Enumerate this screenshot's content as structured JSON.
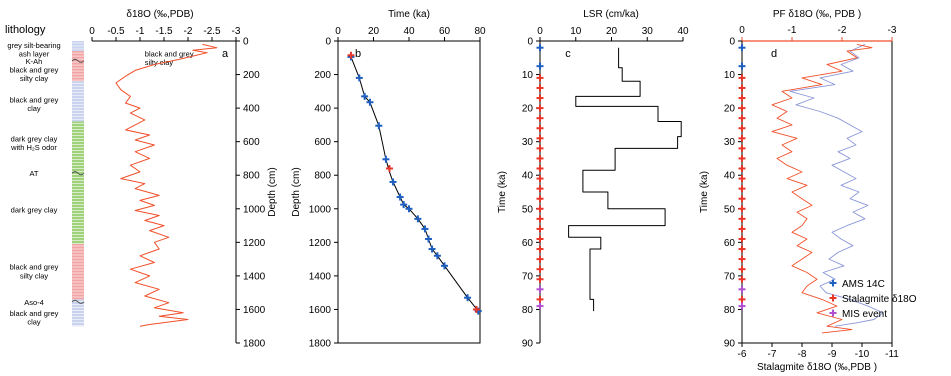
{
  "colors": {
    "orange": "#f0502a",
    "blue": "#1f5fbf",
    "lightblue": "#8b97d8",
    "red": "#e8372a",
    "magenta": "#b04fcf",
    "black": "#000000",
    "litho_blue": "#c9d3ee",
    "litho_red": "#f2a4a4",
    "litho_green": "#9fd27a"
  },
  "chart_data": [
    {
      "panel": "a",
      "type": "line",
      "title": "δ18O (‰,PDB)",
      "xlabel": "δ18O (‰,PDB)",
      "ylabel": "Depth (cm)",
      "xlim": [
        0,
        -3
      ],
      "ylim": [
        0,
        1800
      ],
      "xticks": [
        "0",
        "-0.5",
        "-1",
        "-1.5",
        "-2",
        "-2.5",
        "-3"
      ],
      "yticks": [
        "0",
        "200",
        "400",
        "600",
        "800",
        "1000",
        "1200",
        "1400",
        "1600",
        "1800"
      ],
      "lithology_title": "lithology",
      "lithology_units": [
        {
          "label": "grey silt-bearing ash layer",
          "top": 0,
          "bottom": 60,
          "fill": "litho_blue"
        },
        {
          "label": "black and grey silty clay",
          "top": 60,
          "bottom": 240,
          "fill": "litho_red"
        },
        {
          "label": "black and grey clay",
          "top": 240,
          "bottom": 480,
          "fill": "litho_blue"
        },
        {
          "label": "dark grey clay with H2S odor",
          "top": 480,
          "bottom": 1210,
          "fill": "litho_green"
        },
        {
          "label": "black and grey silty clay",
          "top": 1210,
          "bottom": 1540,
          "fill": "litho_red"
        },
        {
          "label": "black and grey clay",
          "top": 1540,
          "bottom": 1700,
          "fill": "litho_blue"
        }
      ],
      "lithology_labels": [
        {
          "text": "grey silt-bearing",
          "depth": 25
        },
        {
          "text": "ash layer",
          "depth": 75
        },
        {
          "text": "K-Ah",
          "depth": 118
        },
        {
          "text": "black and grey",
          "depth": 170
        },
        {
          "text": "silty clay",
          "depth": 220
        },
        {
          "text": "black and  grey",
          "depth": 350
        },
        {
          "text": "clay",
          "depth": 400
        },
        {
          "text": "dark grey clay",
          "depth": 580
        },
        {
          "text": "with H₂S odor",
          "depth": 632
        },
        {
          "text": "AT",
          "depth": 788
        },
        {
          "text": "dark grey clay",
          "depth": 1005
        },
        {
          "text": "black and grey",
          "depth": 1345
        },
        {
          "text": "silty clay",
          "depth": 1398
        },
        {
          "text": "Aso-4",
          "depth": 1555
        },
        {
          "text": "black and grey",
          "depth": 1620
        },
        {
          "text": "clay",
          "depth": 1673
        }
      ],
      "tephra_layers": [
        {
          "name": "K-Ah",
          "depth": 118
        },
        {
          "name": "AT",
          "depth": 788
        },
        {
          "name": "Aso-4",
          "depth": 1555
        }
      ],
      "annotations": [
        {
          "text": "black and grey",
          "x": -1.1,
          "depth": 75
        },
        {
          "text": "silty clay",
          "x": -1.1,
          "depth": 125
        }
      ],
      "series": [
        {
          "color": "orange",
          "points": [
            [
              -2.3,
              20
            ],
            [
              -2.6,
              40
            ],
            [
              -2.1,
              55
            ],
            [
              -2.4,
              70
            ],
            [
              -2.1,
              90
            ],
            [
              -1.8,
              110
            ],
            [
              -1.3,
              140
            ],
            [
              -0.9,
              175
            ],
            [
              -0.7,
              210
            ],
            [
              -0.5,
              250
            ],
            [
              -0.6,
              290
            ],
            [
              -0.8,
              330
            ],
            [
              -0.7,
              370
            ],
            [
              -1.0,
              400
            ],
            [
              -0.8,
              430
            ],
            [
              -1.1,
              470
            ],
            [
              -0.9,
              500
            ],
            [
              -0.7,
              530
            ],
            [
              -1.2,
              560
            ],
            [
              -0.9,
              590
            ],
            [
              -1.3,
              620
            ],
            [
              -0.9,
              660
            ],
            [
              -1.2,
              700
            ],
            [
              -0.8,
              740
            ],
            [
              -1.0,
              780
            ],
            [
              -0.6,
              820
            ],
            [
              -1.1,
              850
            ],
            [
              -0.9,
              880
            ],
            [
              -1.4,
              920
            ],
            [
              -1.0,
              950
            ],
            [
              -1.3,
              980
            ],
            [
              -0.9,
              1010
            ],
            [
              -1.4,
              1040
            ],
            [
              -1.1,
              1070
            ],
            [
              -1.5,
              1100
            ],
            [
              -1.2,
              1130
            ],
            [
              -1.6,
              1170
            ],
            [
              -1.3,
              1200
            ],
            [
              -1.4,
              1240
            ],
            [
              -1.0,
              1280
            ],
            [
              -1.3,
              1320
            ],
            [
              -0.8,
              1360
            ],
            [
              -1.2,
              1400
            ],
            [
              -0.9,
              1440
            ],
            [
              -1.4,
              1480
            ],
            [
              -1.1,
              1520
            ],
            [
              -1.6,
              1560
            ],
            [
              -1.3,
              1590
            ],
            [
              -1.9,
              1620
            ],
            [
              -1.4,
              1640
            ],
            [
              -2.0,
              1660
            ],
            [
              -1.2,
              1690
            ],
            [
              -1.0,
              1700
            ]
          ]
        }
      ]
    },
    {
      "panel": "b",
      "type": "line",
      "title": "Time (ka)",
      "xlabel": "Time (ka)",
      "ylabel": "Depth (cm)",
      "xlim": [
        0,
        80
      ],
      "ylim": [
        0,
        1800
      ],
      "xticks": [
        "0",
        "20",
        "40",
        "60",
        "80"
      ],
      "yticks": [
        "0",
        "200",
        "400",
        "600",
        "800",
        "1000",
        "1200",
        "1400",
        "1600",
        "1800"
      ],
      "age_model": [
        [
          7.3,
          95
        ],
        [
          12,
          220
        ],
        [
          15,
          330
        ],
        [
          18,
          365
        ],
        [
          23,
          505
        ],
        [
          27,
          705
        ],
        [
          29,
          780
        ],
        [
          31,
          840
        ],
        [
          35,
          930
        ],
        [
          37,
          975
        ],
        [
          40,
          1000
        ],
        [
          45,
          1060
        ],
        [
          49,
          1120
        ],
        [
          51,
          1180
        ],
        [
          53,
          1240
        ],
        [
          56,
          1280
        ],
        [
          60,
          1340
        ],
        [
          73,
          1530
        ],
        [
          79,
          1610
        ]
      ],
      "ams14c": [
        [
          7.3,
          95
        ],
        [
          12,
          220
        ],
        [
          15,
          330
        ],
        [
          18,
          365
        ],
        [
          23,
          505
        ],
        [
          27,
          705
        ],
        [
          31,
          840
        ],
        [
          35,
          930
        ],
        [
          37,
          975
        ],
        [
          40,
          1000
        ],
        [
          45,
          1060
        ],
        [
          49,
          1120
        ],
        [
          51,
          1180
        ],
        [
          53,
          1240
        ],
        [
          56,
          1280
        ],
        [
          60,
          1340
        ],
        [
          73,
          1530
        ],
        [
          79,
          1610
        ]
      ],
      "stalagmite": [
        [
          7.3,
          85
        ],
        [
          29,
          760
        ],
        [
          78,
          1600
        ]
      ]
    },
    {
      "panel": "c",
      "type": "line",
      "title": "LSR (cm/ka)",
      "xlabel": "LSR (cm/ka)",
      "ylabel": "Time (ka)",
      "xlim": [
        0,
        40
      ],
      "ylim": [
        0,
        90
      ],
      "xticks": [
        "0",
        "10",
        "20",
        "30",
        "40"
      ],
      "yticks": [
        "0",
        "10",
        "20",
        "30",
        "40",
        "50",
        "60",
        "70",
        "80",
        "90"
      ],
      "steps": [
        [
          22,
          2
        ],
        [
          22,
          8
        ],
        [
          23,
          8
        ],
        [
          23,
          12
        ],
        [
          28,
          12
        ],
        [
          28,
          16.5
        ],
        [
          10,
          16.5
        ],
        [
          10,
          19.5
        ],
        [
          33,
          19.5
        ],
        [
          33,
          24
        ],
        [
          39.5,
          24
        ],
        [
          39.5,
          28.5
        ],
        [
          38.5,
          28.5
        ],
        [
          38.5,
          32
        ],
        [
          21,
          32
        ],
        [
          21,
          38.5
        ],
        [
          12,
          38.5
        ],
        [
          12,
          45
        ],
        [
          19,
          45
        ],
        [
          19,
          50
        ],
        [
          35,
          50
        ],
        [
          35,
          55
        ],
        [
          8,
          55
        ],
        [
          8,
          58.5
        ],
        [
          17,
          58.5
        ],
        [
          17,
          62
        ],
        [
          14,
          62
        ],
        [
          14,
          77
        ],
        [
          15,
          77
        ],
        [
          15,
          80.5
        ]
      ],
      "ams14c": [
        2,
        7.5
      ],
      "stalagmite": [
        11,
        14,
        17,
        20,
        23,
        26,
        29,
        32,
        35,
        38,
        41,
        44,
        47,
        50,
        53,
        56,
        59,
        62,
        65,
        68,
        71,
        77
      ],
      "mis": [
        74,
        79
      ]
    },
    {
      "panel": "d",
      "type": "line",
      "title": "PF δ18O (‰, PDB )",
      "xlabel_bottom": "Stalagmite δ18O (‰,PDB )",
      "ylabel": "Time (ka)",
      "xlim_top": [
        0,
        -3
      ],
      "xlim_bottom": [
        -6,
        -11
      ],
      "ylim": [
        0,
        90
      ],
      "xticks_top": [
        "0",
        "-1",
        "-2",
        "-3"
      ],
      "xticks_bottom": [
        "-6",
        "-7",
        "-8",
        "-9",
        "-10",
        "-11"
      ],
      "yticks": [
        "0",
        "10",
        "20",
        "30",
        "40",
        "50",
        "60",
        "70",
        "80",
        "90"
      ],
      "legend": [
        "AMS 14C",
        "Stalagmite δ18O",
        "MIS event"
      ],
      "legend_position": "lower-right",
      "pf_series": [
        [
          -2.3,
          1
        ],
        [
          -2.6,
          2
        ],
        [
          -2.1,
          3
        ],
        [
          -2.3,
          5
        ],
        [
          -1.7,
          7
        ],
        [
          -2.0,
          9
        ],
        [
          -1.2,
          11
        ],
        [
          -1.6,
          13
        ],
        [
          -0.8,
          15
        ],
        [
          -1.0,
          17
        ],
        [
          -0.6,
          19
        ],
        [
          -0.9,
          21
        ],
        [
          -0.7,
          23
        ],
        [
          -1.0,
          25
        ],
        [
          -0.6,
          27
        ],
        [
          -1.1,
          29
        ],
        [
          -0.8,
          31
        ],
        [
          -1.0,
          33
        ],
        [
          -0.7,
          35
        ],
        [
          -0.9,
          37
        ],
        [
          -1.2,
          39
        ],
        [
          -0.9,
          41
        ],
        [
          -1.3,
          43
        ],
        [
          -1.0,
          45
        ],
        [
          -1.2,
          47
        ],
        [
          -1.4,
          49
        ],
        [
          -1.1,
          51
        ],
        [
          -1.3,
          53
        ],
        [
          -1.2,
          55
        ],
        [
          -1.0,
          57
        ],
        [
          -1.3,
          59
        ],
        [
          -1.1,
          61
        ],
        [
          -1.4,
          63
        ],
        [
          -1.2,
          65
        ],
        [
          -1.0,
          67
        ],
        [
          -1.3,
          69
        ],
        [
          -1.5,
          71
        ],
        [
          -1.3,
          73
        ],
        [
          -1.2,
          75
        ],
        [
          -1.6,
          77
        ],
        [
          -1.9,
          79
        ],
        [
          -1.5,
          81
        ],
        [
          -2.0,
          83
        ],
        [
          -1.7,
          85
        ],
        [
          -2.2,
          86
        ],
        [
          -1.6,
          87
        ]
      ],
      "stal_series": [
        [
          -10.1,
          1
        ],
        [
          -9.6,
          3
        ],
        [
          -9.9,
          5
        ],
        [
          -9.3,
          7
        ],
        [
          -9.7,
          9
        ],
        [
          -8.6,
          11
        ],
        [
          -9.1,
          13
        ],
        [
          -7.6,
          15
        ],
        [
          -8.4,
          17
        ],
        [
          -7.8,
          19
        ],
        [
          -8.6,
          21
        ],
        [
          -9.2,
          23
        ],
        [
          -9.6,
          25
        ],
        [
          -10.0,
          27
        ],
        [
          -9.5,
          29
        ],
        [
          -9.8,
          31
        ],
        [
          -9.2,
          33
        ],
        [
          -9.6,
          35
        ],
        [
          -9.0,
          37
        ],
        [
          -9.4,
          39
        ],
        [
          -9.8,
          41
        ],
        [
          -9.3,
          43
        ],
        [
          -9.9,
          45
        ],
        [
          -9.6,
          47
        ],
        [
          -10.2,
          49
        ],
        [
          -9.7,
          51
        ],
        [
          -10.1,
          53
        ],
        [
          -9.5,
          55
        ],
        [
          -9.0,
          57
        ],
        [
          -9.3,
          59
        ],
        [
          -9.7,
          61
        ],
        [
          -9.2,
          63
        ],
        [
          -8.9,
          65
        ],
        [
          -9.4,
          67
        ],
        [
          -8.7,
          69
        ],
        [
          -9.1,
          71
        ],
        [
          -8.6,
          73
        ],
        [
          -8.8,
          75
        ],
        [
          -9.6,
          77
        ],
        [
          -10.2,
          79
        ],
        [
          -10.7,
          81
        ],
        [
          -10.4,
          83
        ],
        [
          -9.8,
          84
        ],
        [
          -9.1,
          85
        ]
      ],
      "ams14c": [
        2,
        7.5
      ],
      "stalagmite": [
        11,
        14,
        17,
        20,
        23,
        26,
        29,
        32,
        35,
        38,
        41,
        44,
        47,
        50,
        53,
        56,
        59,
        62,
        65,
        68,
        71,
        77
      ],
      "mis": [
        74,
        79
      ]
    }
  ]
}
